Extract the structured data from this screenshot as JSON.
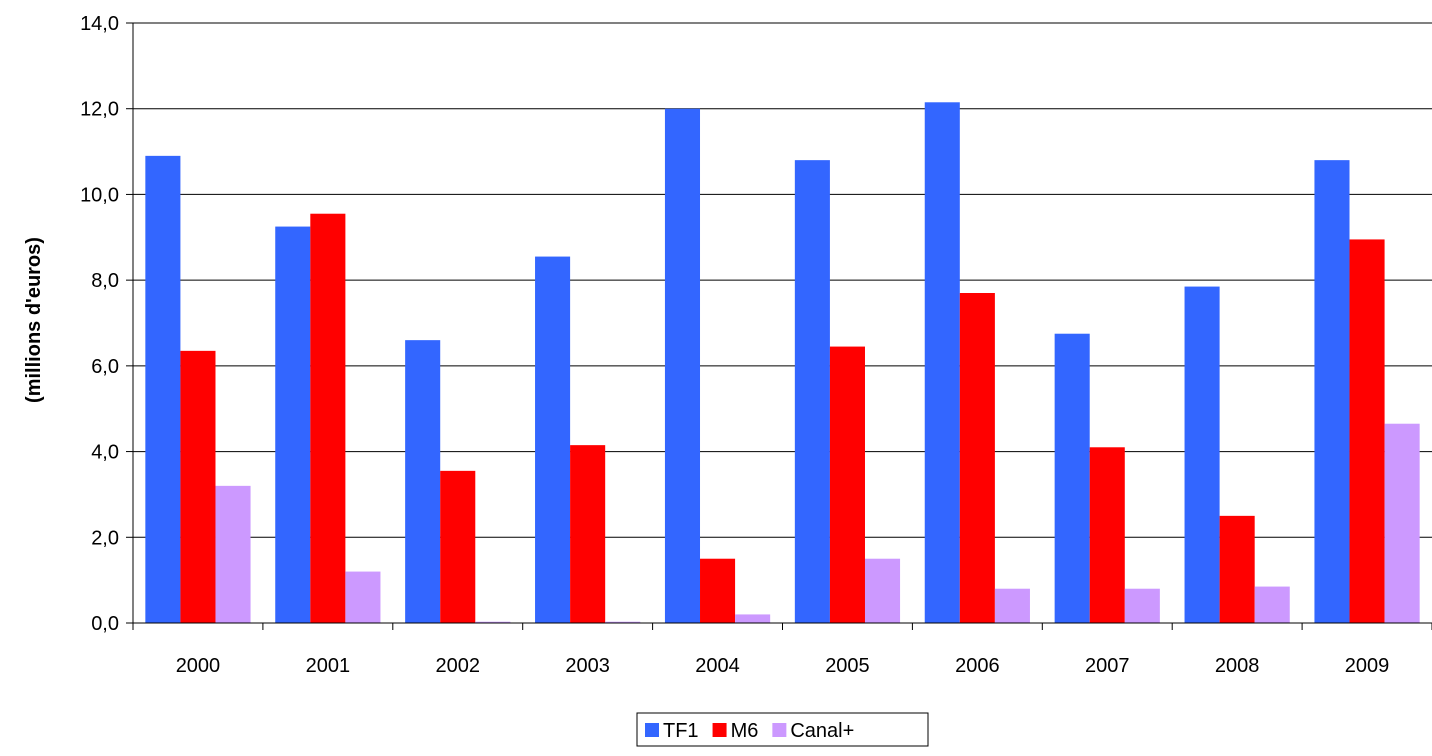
{
  "chart_data": {
    "type": "bar",
    "title": "",
    "xlabel": "",
    "ylabel": "(millions d'euros)",
    "ylim": [
      0,
      14
    ],
    "yticks": [
      "0,0",
      "2,0",
      "4,0",
      "6,0",
      "8,0",
      "10,0",
      "12,0",
      "14,0"
    ],
    "ytick_values": [
      0,
      2,
      4,
      6,
      8,
      10,
      12,
      14
    ],
    "grid": true,
    "legend_position": "bottom",
    "categories": [
      "2000",
      "2001",
      "2002",
      "2003",
      "2004",
      "2005",
      "2006",
      "2007",
      "2008",
      "2009"
    ],
    "series": [
      {
        "name": "TF1",
        "color": "#3366FF",
        "values": [
          10.9,
          9.25,
          6.6,
          8.55,
          12.0,
          10.8,
          12.15,
          6.75,
          7.85,
          10.8
        ]
      },
      {
        "name": "M6",
        "color": "#FF0000",
        "values": [
          6.35,
          9.55,
          3.55,
          4.15,
          1.5,
          6.45,
          7.7,
          4.1,
          2.5,
          8.95
        ]
      },
      {
        "name": "Canal+",
        "color": "#CC99FF",
        "values": [
          3.2,
          1.2,
          0.03,
          0.03,
          0.2,
          1.5,
          0.8,
          0.8,
          0.85,
          4.65
        ]
      }
    ]
  }
}
